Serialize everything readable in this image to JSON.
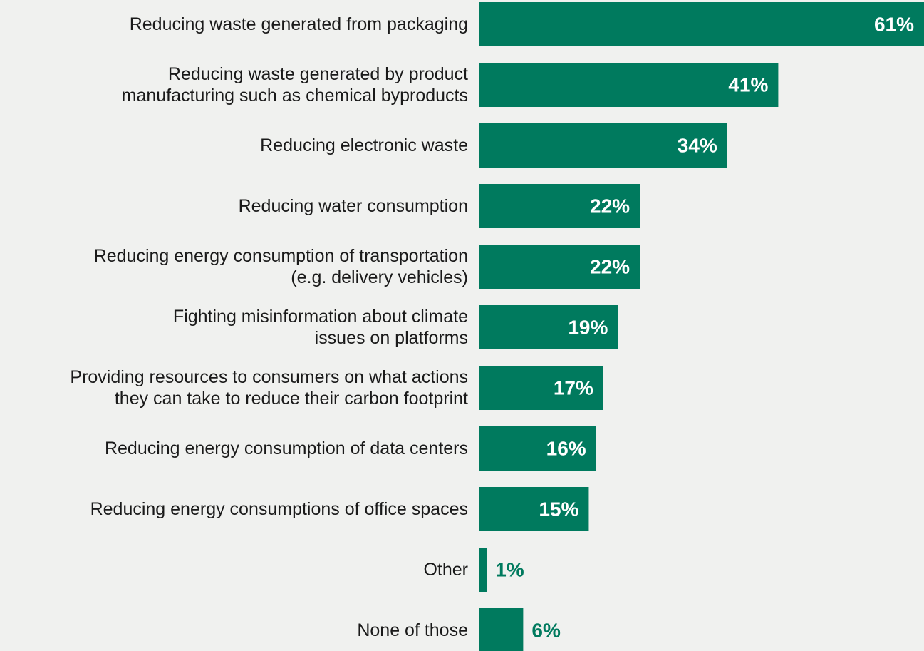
{
  "chart_data": {
    "type": "bar",
    "orientation": "horizontal",
    "categories": [
      [
        "Reducing waste generated from packaging"
      ],
      [
        "Reducing waste generated by product",
        "manufacturing such as chemical byproducts"
      ],
      [
        "Reducing electronic waste"
      ],
      [
        "Reducing water consumption"
      ],
      [
        "Reducing energy consumption of transportation",
        "(e.g. delivery vehicles)"
      ],
      [
        "Fighting misinformation about climate",
        "issues on platforms"
      ],
      [
        "Providing resources to consumers on what actions",
        "they can take to reduce their carbon footprint"
      ],
      [
        "Reducing energy consumption of data centers"
      ],
      [
        "Reducing energy consumptions of office spaces"
      ],
      [
        "Other"
      ],
      [
        "None of those"
      ]
    ],
    "values": [
      61,
      41,
      34,
      22,
      22,
      19,
      17,
      16,
      15,
      1,
      6
    ],
    "value_labels": [
      "61%",
      "41%",
      "34%",
      "22%",
      "22%",
      "19%",
      "17%",
      "16%",
      "15%",
      "1%",
      "6%"
    ],
    "unit": "%",
    "xlim": [
      0,
      61
    ],
    "grid": false,
    "legend": "none",
    "colors": {
      "bar": "#007a5e",
      "label_inside": "#ffffff",
      "label_outside": "#007a5e",
      "category_text": "#1a1a1a",
      "background": "#f0f1ef"
    }
  }
}
